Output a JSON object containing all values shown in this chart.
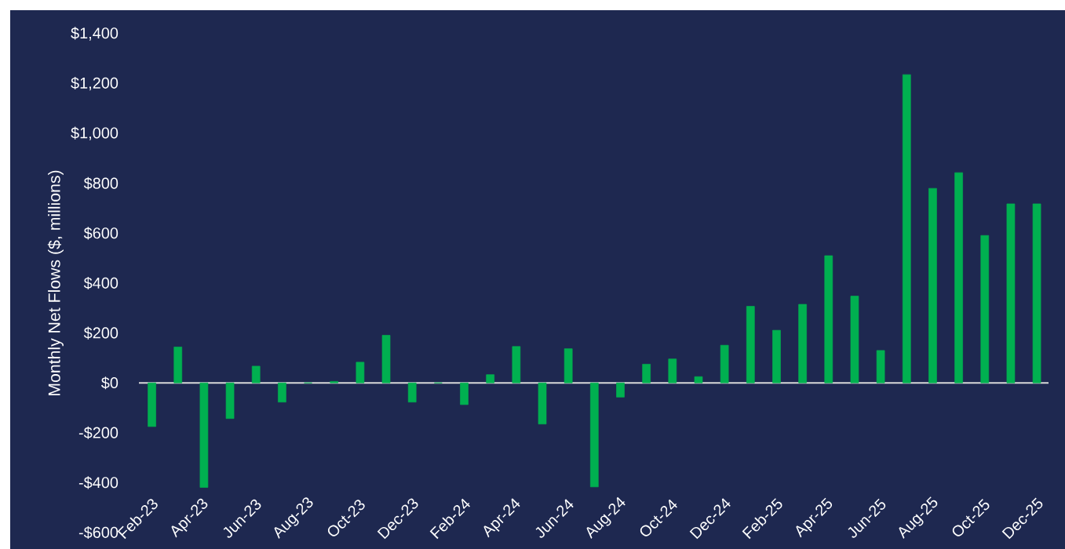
{
  "chart_data": {
    "type": "bar",
    "ylabel": "Monthly Net Flows ($, millions)",
    "categories": [
      "Feb-23",
      null,
      "Apr-23",
      null,
      "Jun-23",
      null,
      "Aug-23",
      null,
      "Oct-23",
      null,
      "Dec-23",
      null,
      "Feb-24",
      null,
      "Apr-24",
      null,
      "Jun-24",
      null,
      "Aug-24",
      null,
      "Oct-24",
      null,
      "Dec-24",
      null,
      "Feb-25",
      null,
      "Apr-25",
      null,
      "Jun-25",
      null,
      "Aug-25",
      null,
      "Oct-25",
      null,
      "Dec-25"
    ],
    "values": [
      -175,
      144,
      -419,
      -143,
      67,
      -77,
      0,
      6,
      83,
      191,
      -77,
      0,
      -87,
      33,
      146,
      -165,
      137,
      -417,
      -57,
      75,
      96,
      25,
      151,
      307,
      211,
      315,
      510,
      348,
      130,
      1236,
      780,
      843,
      591,
      718,
      718
    ],
    "color": "#00b050",
    "ref_lines": [
      {
        "axis": "y",
        "value": 0,
        "color": "#d9d9d9"
      }
    ],
    "ylim": [
      -600,
      1400
    ],
    "yticks": [
      {
        "value": -600,
        "label": "-$600"
      },
      {
        "value": -400,
        "label": "-$400"
      },
      {
        "value": -200,
        "label": "-$200"
      },
      {
        "value": 0,
        "label": "$0"
      },
      {
        "value": 200,
        "label": "$200"
      },
      {
        "value": 400,
        "label": "$400"
      },
      {
        "value": 600,
        "label": "$600"
      },
      {
        "value": 800,
        "label": "$800"
      },
      {
        "value": 1000,
        "label": "$1,000"
      },
      {
        "value": 1200,
        "label": "$1,200"
      },
      {
        "value": 1400,
        "label": "$1,400"
      }
    ]
  }
}
